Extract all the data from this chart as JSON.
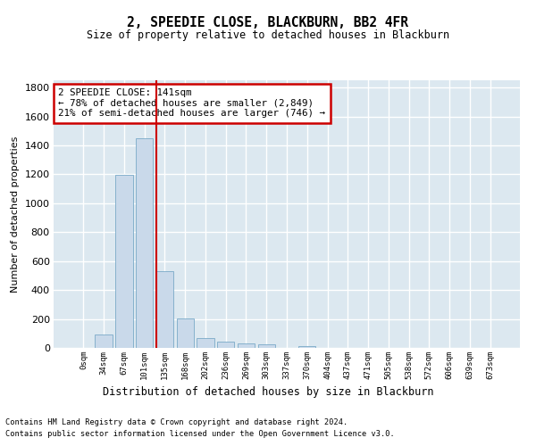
{
  "title": "2, SPEEDIE CLOSE, BLACKBURN, BB2 4FR",
  "subtitle": "Size of property relative to detached houses in Blackburn",
  "xlabel": "Distribution of detached houses by size in Blackburn",
  "ylabel": "Number of detached properties",
  "bar_color": "#c9d9ea",
  "bar_edgecolor": "#7aaac8",
  "background_color": "#dce8f0",
  "grid_color": "#ffffff",
  "categories": [
    "0sqm",
    "34sqm",
    "67sqm",
    "101sqm",
    "135sqm",
    "168sqm",
    "202sqm",
    "236sqm",
    "269sqm",
    "303sqm",
    "337sqm",
    "370sqm",
    "404sqm",
    "437sqm",
    "471sqm",
    "505sqm",
    "538sqm",
    "572sqm",
    "606sqm",
    "639sqm",
    "673sqm"
  ],
  "values": [
    0,
    90,
    1195,
    1450,
    530,
    205,
    65,
    45,
    30,
    25,
    0,
    10,
    0,
    0,
    0,
    0,
    0,
    0,
    0,
    0,
    0
  ],
  "redline_index": 4,
  "annotation_text": "2 SPEEDIE CLOSE: 141sqm\n← 78% of detached houses are smaller (2,849)\n21% of semi-detached houses are larger (746) →",
  "annotation_box_color": "#ffffff",
  "annotation_border_color": "#cc0000",
  "redline_color": "#cc0000",
  "ylim": [
    0,
    1850
  ],
  "yticks": [
    0,
    200,
    400,
    600,
    800,
    1000,
    1200,
    1400,
    1600,
    1800
  ],
  "footer_line1": "Contains HM Land Registry data © Crown copyright and database right 2024.",
  "footer_line2": "Contains public sector information licensed under the Open Government Licence v3.0."
}
